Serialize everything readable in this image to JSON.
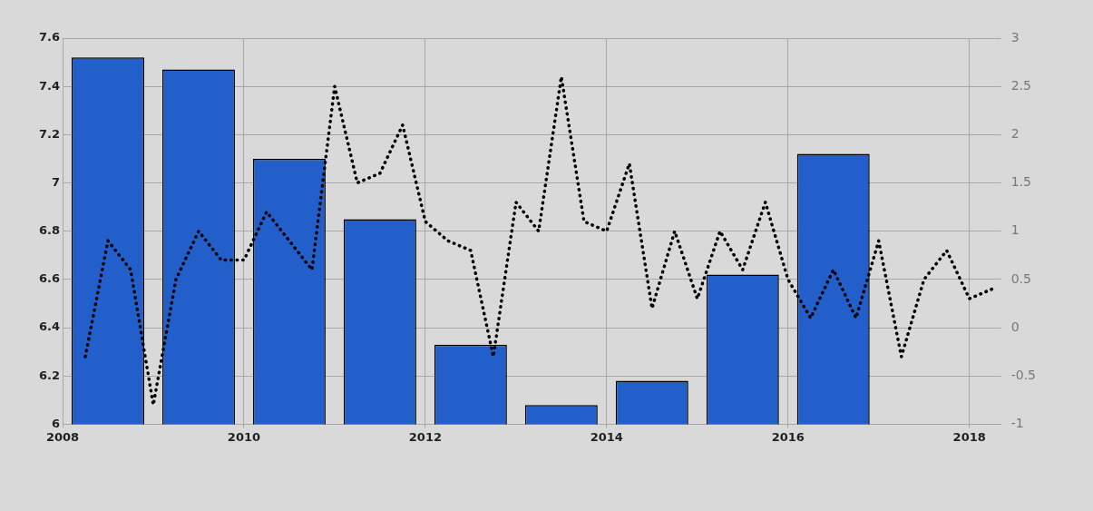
{
  "chart_data": {
    "type": "bar",
    "xlim": [
      2008,
      2018.35
    ],
    "xticks": [
      2008,
      2010,
      2012,
      2014,
      2016,
      2018
    ],
    "ylim": [
      6,
      7.6
    ],
    "yticks": [
      6,
      6.2,
      6.4,
      6.6,
      6.8,
      7,
      7.2,
      7.4,
      7.6
    ],
    "y2lim": [
      -1,
      3
    ],
    "y2ticks": [
      -1,
      -0.5,
      0,
      0.5,
      1,
      1.5,
      2,
      2.5,
      3
    ],
    "grid": true,
    "legend": false,
    "series": [
      {
        "color": "#235fca",
        "x": [
          2008.5,
          2009.5,
          2010.5,
          2011.5,
          2012.5,
          2013.5,
          2014.5,
          2015.5,
          2016.5
        ],
        "values": [
          7.52,
          7.47,
          7.1,
          6.85,
          6.33,
          6.08,
          6.18,
          6.62,
          7.12
        ]
      },
      {
        "type": "line",
        "axis": "y2",
        "color": "#000000",
        "line_style": "dotted",
        "marker": "none",
        "x": [
          2008.25,
          2008.5,
          2008.75,
          2009,
          2009.25,
          2009.5,
          2009.75,
          2010,
          2010.25,
          2010.5,
          2010.75,
          2011,
          2011.25,
          2011.5,
          2011.75,
          2012,
          2012.25,
          2012.5,
          2012.75,
          2013,
          2013.25,
          2013.5,
          2013.75,
          2014,
          2014.25,
          2014.5,
          2014.75,
          2015,
          2015.25,
          2015.5,
          2015.75,
          2016,
          2016.25,
          2016.5,
          2016.75,
          2017,
          2017.25,
          2017.5,
          2017.75,
          2018,
          2018.25
        ],
        "values": [
          -0.3,
          0.9,
          0.6,
          -0.8,
          0.5,
          1.0,
          0.7,
          0.7,
          1.2,
          0.9,
          0.6,
          2.5,
          1.5,
          1.6,
          2.1,
          1.1,
          0.9,
          0.8,
          -0.3,
          1.3,
          1.0,
          2.6,
          1.1,
          1.0,
          1.7,
          0.2,
          1.0,
          0.3,
          1.0,
          0.6,
          1.3,
          0.5,
          0.1,
          0.6,
          0.1,
          0.9,
          -0.3,
          0.5,
          0.8,
          0.3,
          0.4
        ]
      }
    ]
  }
}
